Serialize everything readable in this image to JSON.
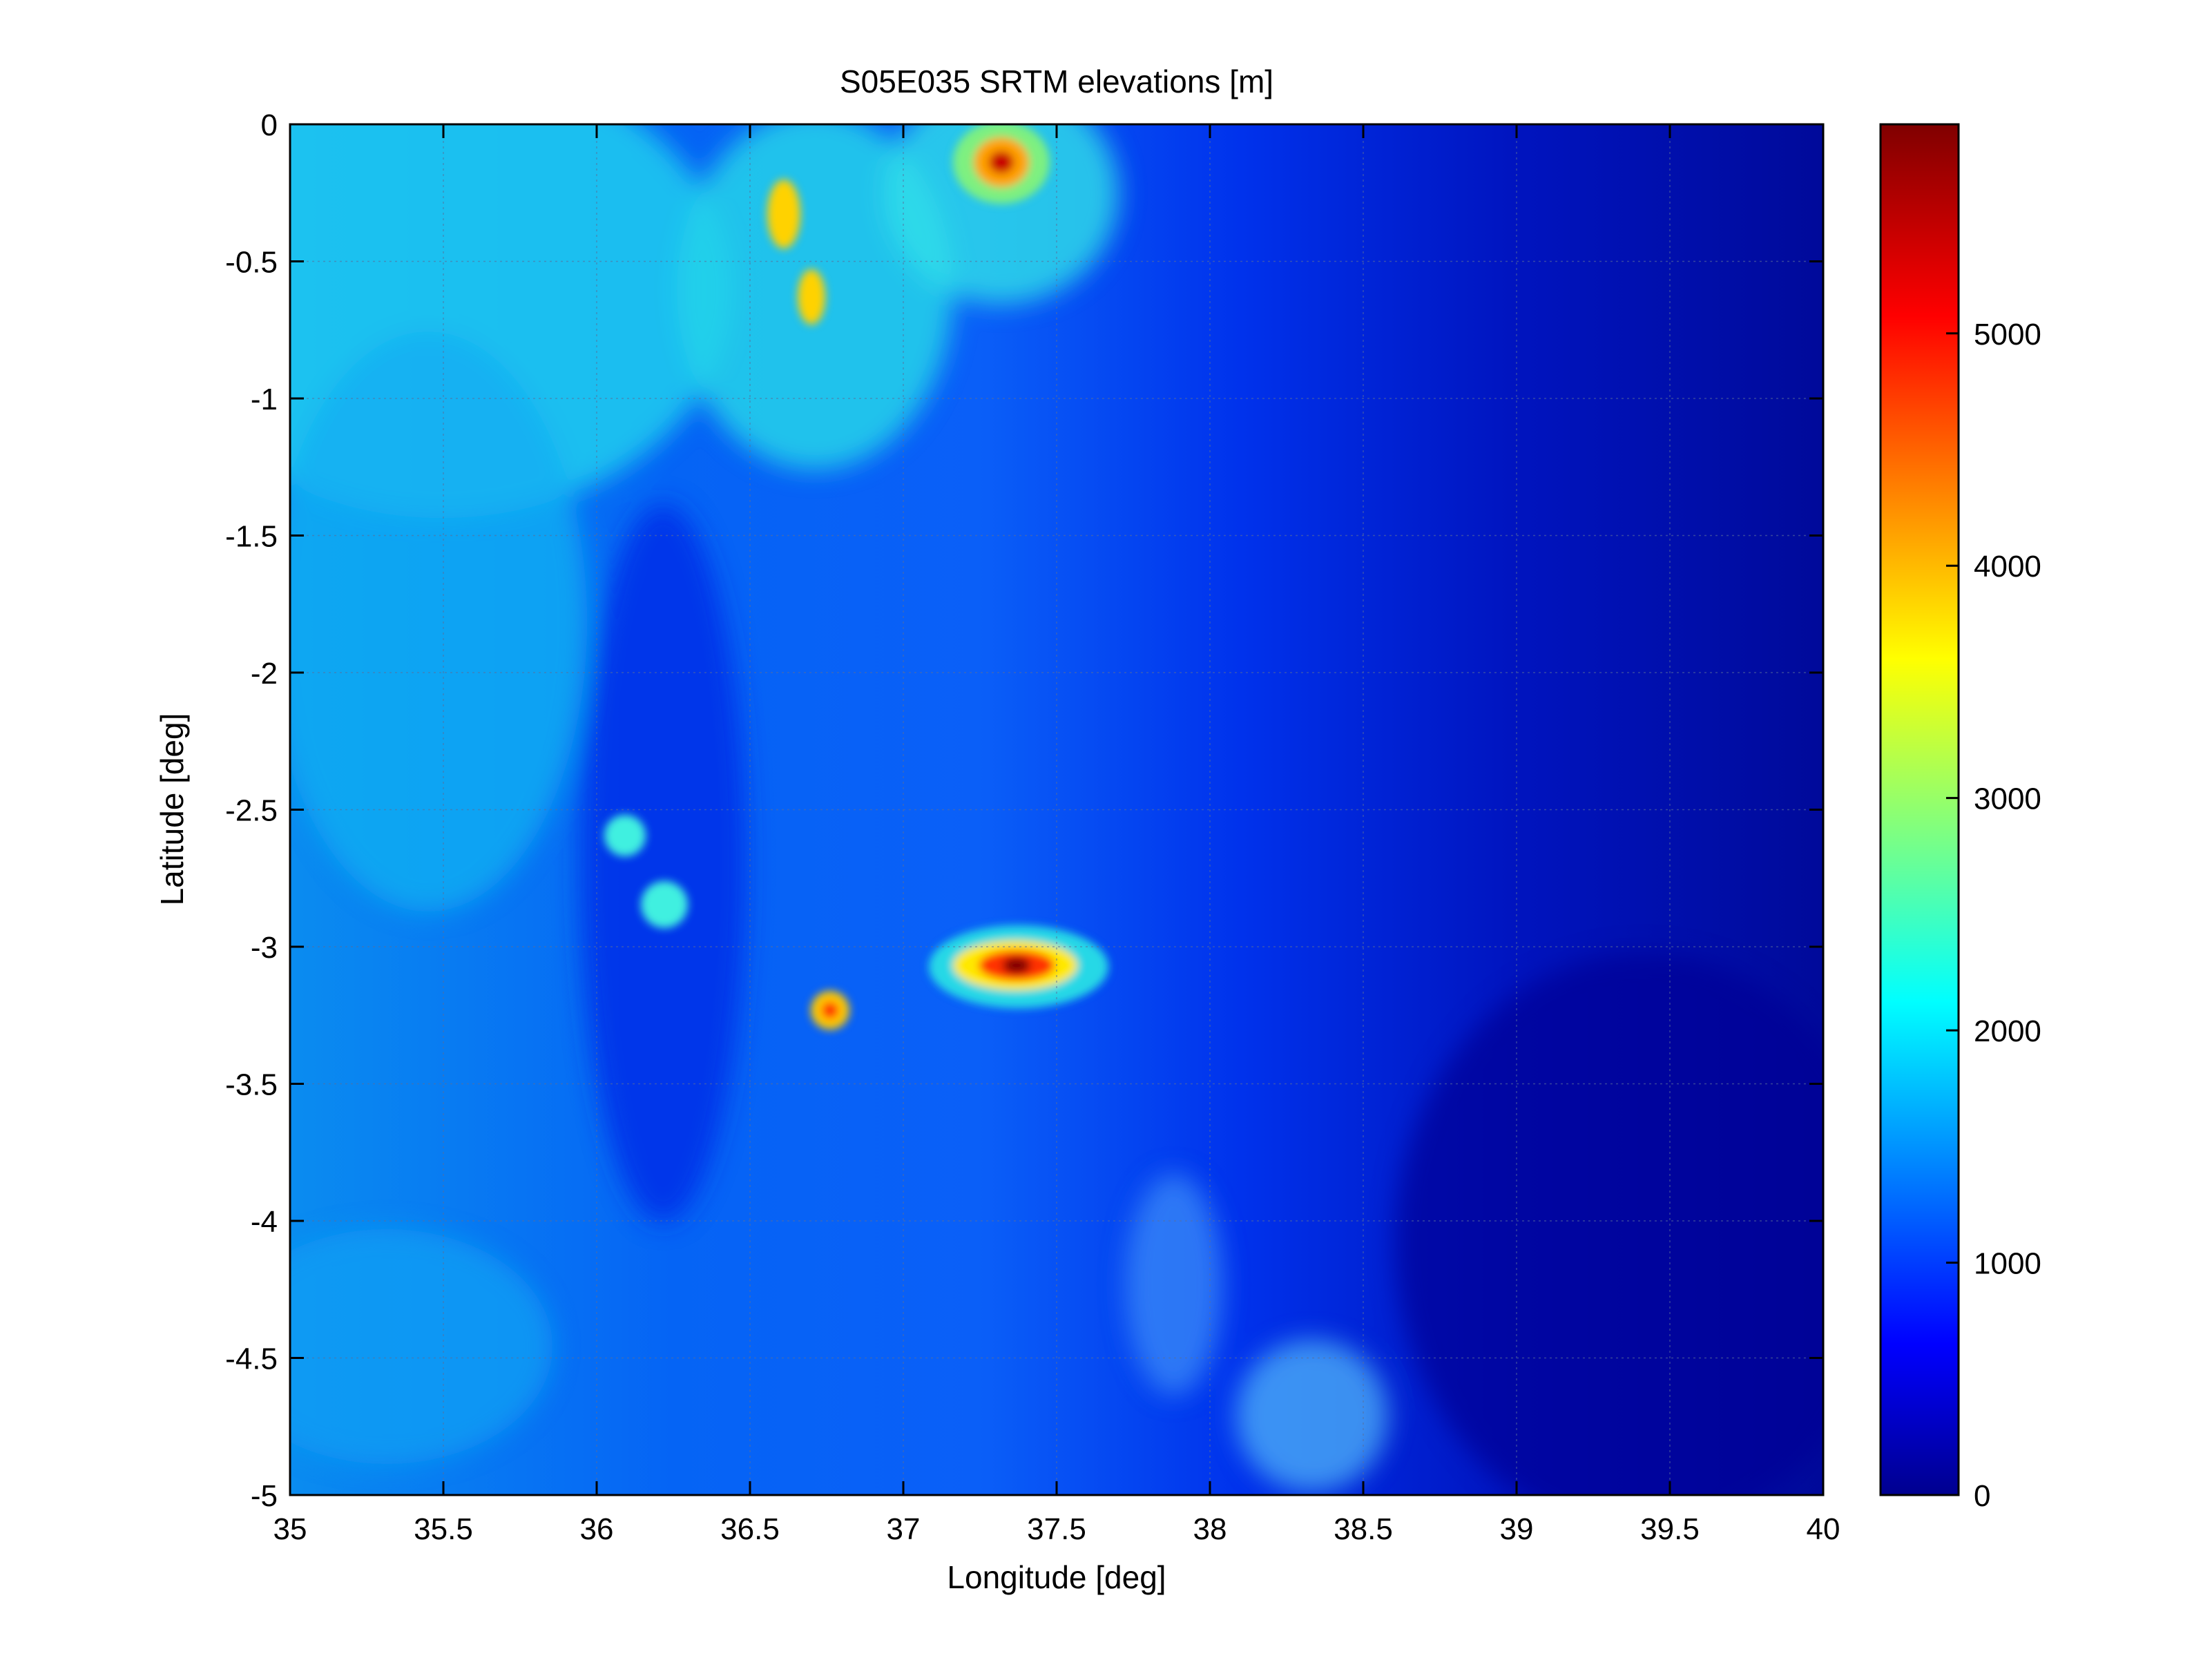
{
  "chart_data": {
    "type": "heatmap",
    "title": "S05E035 SRTM elevations [m]",
    "xlabel": "Longitude [deg]",
    "ylabel": "Latitude [deg]",
    "xlim": [
      35,
      40
    ],
    "ylim": [
      -5,
      0
    ],
    "x_ticks": [
      35,
      35.5,
      36,
      36.5,
      37,
      37.5,
      38,
      38.5,
      39,
      39.5,
      40
    ],
    "y_ticks": [
      0,
      -0.5,
      -1,
      -1.5,
      -2,
      -2.5,
      -3,
      -3.5,
      -4,
      -4.5,
      -5
    ],
    "grid": true,
    "colorbar": {
      "colormap": "jet",
      "range": [
        0,
        5900
      ],
      "ticks": [
        0,
        1000,
        2000,
        3000,
        4000,
        5000
      ]
    },
    "features": [
      {
        "lon": 37.33,
        "lat": -3.07,
        "elevation": 5880
      },
      {
        "lon": 37.3,
        "lat": -0.15,
        "elevation": 5100
      },
      {
        "lon": 36.6,
        "lat": -0.35,
        "elevation": 3900
      },
      {
        "lon": 36.77,
        "lat": -3.25,
        "elevation": 4560
      },
      {
        "lon": 36.22,
        "lat": -2.9,
        "elevation": 2650
      },
      {
        "lon": 36.1,
        "lat": -2.6,
        "elevation": 2500
      }
    ]
  }
}
